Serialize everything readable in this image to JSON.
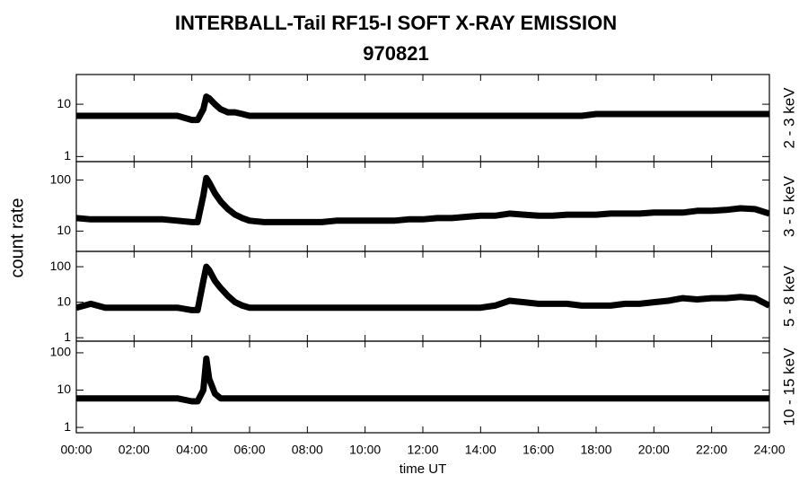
{
  "title": "INTERBALL-Tail RF15-I SOFT X-RAY EMISSION",
  "subtitle": "970821",
  "y_label": "count rate",
  "x_label": "time UT",
  "chart_data": [
    {
      "type": "line",
      "log_y": true,
      "ylim": [
        0.8,
        37
      ],
      "yticks": [
        1,
        10
      ],
      "x": [
        0,
        0.5,
        1,
        1.5,
        2,
        2.5,
        3,
        3.5,
        4,
        4.2,
        4.4,
        4.5,
        4.6,
        4.8,
        5,
        5.25,
        5.5,
        5.75,
        6,
        6.5,
        7,
        7.5,
        8,
        8.5,
        9,
        9.5,
        10,
        10.5,
        11,
        11.5,
        12,
        12.5,
        13,
        13.5,
        14,
        14.5,
        15,
        15.5,
        16,
        16.5,
        17,
        17.5,
        18,
        18.5,
        19,
        19.5,
        20,
        20.5,
        21,
        21.5,
        22,
        22.5,
        23,
        23.5,
        24
      ],
      "series": [
        {
          "name": "2 - 3 keV",
          "color": "#000000",
          "values": [
            6,
            6,
            6,
            6,
            6,
            6,
            6,
            6,
            5,
            5,
            8,
            14,
            13,
            10,
            8,
            7,
            7,
            6.5,
            6,
            6,
            6,
            6,
            6,
            6,
            6,
            6,
            6,
            6,
            6,
            6,
            6,
            6,
            6,
            6,
            6,
            6,
            6,
            6,
            6,
            6,
            6,
            6,
            6.5,
            6.5,
            6.5,
            6.5,
            6.5,
            6.5,
            6.5,
            6.5,
            6.5,
            6.5,
            6.5,
            6.5,
            6.5
          ]
        }
      ]
    },
    {
      "type": "line",
      "log_y": true,
      "ylim": [
        4,
        230
      ],
      "yticks": [
        10,
        100
      ],
      "x": [
        0,
        0.5,
        1,
        1.5,
        2,
        2.5,
        3,
        3.5,
        4,
        4.2,
        4.4,
        4.5,
        4.6,
        4.8,
        5,
        5.25,
        5.5,
        5.75,
        6,
        6.5,
        7,
        7.5,
        8,
        8.5,
        9,
        9.5,
        10,
        10.5,
        11,
        11.5,
        12,
        12.5,
        13,
        13.5,
        14,
        14.5,
        15,
        15.5,
        16,
        16.5,
        17,
        17.5,
        18,
        18.5,
        19,
        19.5,
        20,
        20.5,
        21,
        21.5,
        22,
        22.5,
        23,
        23.5,
        24
      ],
      "series": [
        {
          "name": "3 - 5 keV",
          "color": "#000000",
          "values": [
            18,
            17,
            17,
            17,
            17,
            17,
            17,
            16,
            15,
            15,
            50,
            110,
            90,
            55,
            38,
            27,
            21,
            18,
            16,
            15,
            15,
            15,
            15,
            15,
            16,
            16,
            16,
            16,
            16,
            17,
            17,
            18,
            18,
            19,
            20,
            20,
            22,
            21,
            20,
            20,
            21,
            21,
            21,
            22,
            22,
            22,
            23,
            23,
            23,
            25,
            25,
            26,
            28,
            27,
            22
          ]
        }
      ]
    },
    {
      "type": "line",
      "log_y": true,
      "ylim": [
        0.8,
        270
      ],
      "yticks": [
        1,
        10,
        100
      ],
      "x": [
        0,
        0.5,
        1,
        1.5,
        2,
        2.5,
        3,
        3.5,
        4,
        4.2,
        4.4,
        4.5,
        4.6,
        4.8,
        5,
        5.25,
        5.5,
        5.75,
        6,
        6.5,
        7,
        7.5,
        8,
        8.5,
        9,
        9.5,
        10,
        10.5,
        11,
        11.5,
        12,
        12.5,
        13,
        13.5,
        14,
        14.5,
        15,
        15.5,
        16,
        16.5,
        17,
        17.5,
        18,
        18.5,
        19,
        19.5,
        20,
        20.5,
        21,
        21.5,
        22,
        22.5,
        23,
        23.5,
        24
      ],
      "series": [
        {
          "name": "5 - 8 keV",
          "color": "#000000",
          "values": [
            7,
            9,
            7,
            7,
            7,
            7,
            7,
            7,
            6,
            6,
            40,
            100,
            80,
            40,
            25,
            15,
            10,
            8,
            7,
            7,
            7,
            7,
            7,
            7,
            7,
            7,
            7,
            7,
            7,
            7,
            7,
            7,
            7,
            7,
            7,
            8,
            11,
            10,
            9,
            9,
            9,
            8,
            8,
            8,
            9,
            9,
            10,
            11,
            13,
            12,
            13,
            13,
            14,
            13,
            8
          ]
        }
      ]
    },
    {
      "type": "line",
      "log_y": true,
      "ylim": [
        0.72,
        205
      ],
      "yticks": [
        1,
        10,
        100
      ],
      "xlim": [
        0,
        24
      ],
      "xticks": [
        {
          "value": 0,
          "label": "00:00"
        },
        {
          "value": 2,
          "label": "02:00"
        },
        {
          "value": 4,
          "label": "04:00"
        },
        {
          "value": 6,
          "label": "06:00"
        },
        {
          "value": 8,
          "label": "08:00"
        },
        {
          "value": 10,
          "label": "10:00"
        },
        {
          "value": 12,
          "label": "12:00"
        },
        {
          "value": 14,
          "label": "14:00"
        },
        {
          "value": 16,
          "label": "16:00"
        },
        {
          "value": 18,
          "label": "18:00"
        },
        {
          "value": 20,
          "label": "20:00"
        },
        {
          "value": 22,
          "label": "22:00"
        },
        {
          "value": 24,
          "label": "24:00"
        }
      ],
      "x": [
        0,
        0.5,
        1,
        1.5,
        2,
        2.5,
        3,
        3.5,
        4,
        4.2,
        4.4,
        4.5,
        4.6,
        4.8,
        5,
        5.25,
        5.5,
        5.75,
        6,
        6.5,
        7,
        7.5,
        8,
        8.5,
        9,
        9.5,
        10,
        10.5,
        11,
        11.5,
        12,
        12.5,
        13,
        13.5,
        14,
        14.5,
        15,
        15.5,
        16,
        16.5,
        17,
        17.5,
        18,
        18.5,
        19,
        19.5,
        20,
        20.5,
        21,
        21.5,
        22,
        22.5,
        23,
        23.5,
        24
      ],
      "series": [
        {
          "name": "10 - 15 keV",
          "color": "#000000",
          "values": [
            6,
            6,
            6,
            6,
            6,
            6,
            6,
            6,
            5,
            5,
            10,
            70,
            20,
            8,
            6,
            6,
            6,
            6,
            6,
            6,
            6,
            6,
            6,
            6,
            6,
            6,
            6,
            6,
            6,
            6,
            6,
            6,
            6,
            6,
            6,
            6,
            6,
            6,
            6,
            6,
            6,
            6,
            6,
            6,
            6,
            6,
            6,
            6,
            6,
            6,
            6,
            6,
            6,
            6,
            6
          ]
        }
      ]
    }
  ]
}
